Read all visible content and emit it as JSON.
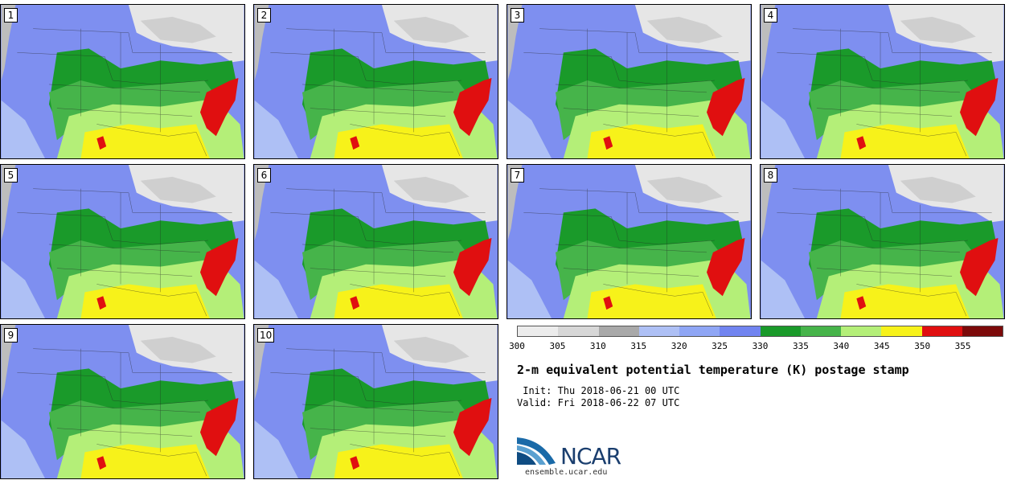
{
  "figure": {
    "title": "2-m equivalent potential temperature (K) postage stamp",
    "init": " Init: Thu 2018-06-21 00 UTC",
    "valid": "Valid: Fri 2018-06-22 07 UTC",
    "site": "ensemble.ucar.edu",
    "logo_text": "NCAR"
  },
  "members": [
    "1",
    "2",
    "3",
    "4",
    "5",
    "6",
    "7",
    "8",
    "9",
    "10"
  ],
  "colorbar": {
    "ticks": [
      "300",
      "305",
      "310",
      "315",
      "320",
      "325",
      "330",
      "335",
      "340",
      "345",
      "350",
      "355"
    ],
    "colors": [
      "#ececec",
      "#d7d7d7",
      "#a9a9a9",
      "#aec0f5",
      "#8fa6f5",
      "#7184f0",
      "#1a9a2a",
      "#46b44a",
      "#b4ef78",
      "#f7f21a",
      "#e00f10",
      "#7c0a0a"
    ]
  }
}
